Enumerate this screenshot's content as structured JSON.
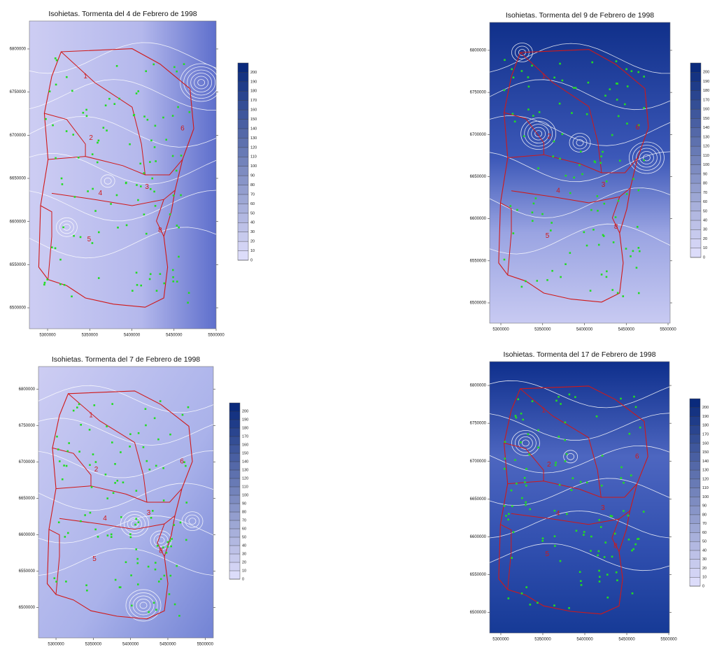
{
  "chart_data": [
    {
      "type": "contour",
      "title": "Isohietas. Tormenta del 4 de Febrero de 1998",
      "xlim": [
        5278400,
        5500000
      ],
      "ylim": [
        6475700,
        6832400
      ],
      "xticks": [
        5300000,
        5350000,
        5400000,
        5450000,
        5500000
      ],
      "yticks": [
        6500000,
        6550000,
        6600000,
        6650000,
        6700000,
        6750000,
        6800000
      ],
      "clim": [
        0,
        210
      ],
      "cticks": [
        0,
        10,
        20,
        30,
        40,
        50,
        60,
        70,
        80,
        90,
        100,
        110,
        120,
        130,
        140,
        150,
        160,
        170,
        180,
        190,
        200
      ],
      "regions": [
        "1",
        "2",
        "3",
        "4",
        "5",
        "6",
        "8"
      ]
    },
    {
      "type": "contour",
      "title": "Isohietas. Tormenta del 9 de Febrero de 1998",
      "xlim": [
        5286600,
        5502500
      ],
      "ylim": [
        6475900,
        6833200
      ],
      "xticks": [
        5300000,
        5350000,
        5400000,
        5450000,
        5500000
      ],
      "yticks": [
        6500000,
        6550000,
        6600000,
        6650000,
        6700000,
        6750000,
        6800000
      ],
      "clim": [
        0,
        210
      ],
      "cticks": [
        0,
        10,
        20,
        30,
        40,
        50,
        60,
        70,
        80,
        90,
        100,
        110,
        120,
        130,
        140,
        150,
        160,
        170,
        180,
        190,
        200
      ],
      "regions": [
        "1",
        "2",
        "3",
        "4",
        "5",
        "6",
        "8"
      ]
    },
    {
      "type": "contour",
      "title": "Isohietas. Tormenta del 7 de Febrero de 1998",
      "xlim": [
        5276500,
        5511000
      ],
      "ylim": [
        6458000,
        6831000
      ],
      "xticks": [
        5300000,
        5350000,
        5400000,
        5450000,
        5500000
      ],
      "yticks": [
        6500000,
        6550000,
        6600000,
        6650000,
        6700000,
        6750000,
        6800000
      ],
      "clim": [
        0,
        210
      ],
      "cticks": [
        0,
        10,
        20,
        30,
        40,
        50,
        60,
        70,
        80,
        90,
        100,
        110,
        120,
        130,
        140,
        150,
        160,
        170,
        180,
        190,
        200
      ],
      "regions": [
        "1",
        "2",
        "3",
        "4",
        "5",
        "6",
        "8"
      ]
    },
    {
      "type": "contour",
      "title": "Isohietas. Tormenta del 17 de Febrero de 1998",
      "xlim": [
        5286700,
        5500800
      ],
      "ylim": [
        6472800,
        6831500
      ],
      "xticks": [
        5300000,
        5350000,
        5400000,
        5450000,
        5500000
      ],
      "yticks": [
        6500000,
        6550000,
        6600000,
        6650000,
        6700000,
        6750000,
        6800000
      ],
      "clim": [
        0,
        210
      ],
      "cticks": [
        0,
        10,
        20,
        30,
        40,
        50,
        60,
        70,
        80,
        90,
        100,
        110,
        120,
        130,
        140,
        150,
        160,
        170,
        180,
        190,
        200
      ],
      "regions": [
        "1",
        "2",
        "3",
        "4",
        "5",
        "6",
        "8"
      ]
    }
  ]
}
